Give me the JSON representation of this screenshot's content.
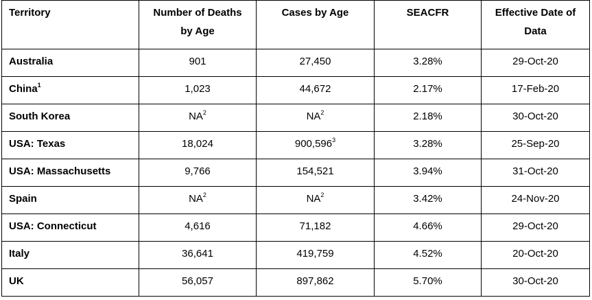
{
  "table": {
    "headers": [
      {
        "text": "Territory",
        "line2": ""
      },
      {
        "text": "Number of Deaths",
        "line2": "by Age"
      },
      {
        "text": "Cases by Age",
        "line2": ""
      },
      {
        "text": "SEACFR",
        "line2": ""
      },
      {
        "text": "Effective Date of",
        "line2": "Data"
      }
    ],
    "rows": [
      {
        "territory": "Australia",
        "territory_sup": "",
        "deaths": "901",
        "deaths_sup": "",
        "cases": "27,450",
        "cases_sup": "",
        "seacfr": "3.28%",
        "date": "29-Oct-20"
      },
      {
        "territory": "China",
        "territory_sup": "1",
        "deaths": "1,023",
        "deaths_sup": "",
        "cases": "44,672",
        "cases_sup": "",
        "seacfr": "2.17%",
        "date": "17-Feb-20"
      },
      {
        "territory": "South Korea",
        "territory_sup": "",
        "deaths": "NA",
        "deaths_sup": "2",
        "cases": "NA",
        "cases_sup": "2",
        "seacfr": "2.18%",
        "date": "30-Oct-20"
      },
      {
        "territory": "USA: Texas",
        "territory_sup": "",
        "deaths": "18,024",
        "deaths_sup": "",
        "cases": "900,596",
        "cases_sup": "3",
        "seacfr": "3.28%",
        "date": "25-Sep-20"
      },
      {
        "territory": "USA: Massachusetts",
        "territory_sup": "",
        "deaths": "9,766",
        "deaths_sup": "",
        "cases": "154,521",
        "cases_sup": "",
        "seacfr": "3.94%",
        "date": "31-Oct-20"
      },
      {
        "territory": "Spain",
        "territory_sup": "",
        "deaths": "NA",
        "deaths_sup": "2",
        "cases": "NA",
        "cases_sup": "2",
        "seacfr": "3.42%",
        "date": "24-Nov-20"
      },
      {
        "territory": "USA: Connecticut",
        "territory_sup": "",
        "deaths": "4,616",
        "deaths_sup": "",
        "cases": "71,182",
        "cases_sup": "",
        "seacfr": "4.66%",
        "date": "29-Oct-20"
      },
      {
        "territory": "Italy",
        "territory_sup": "",
        "deaths": "36,641",
        "deaths_sup": "",
        "cases": "419,759",
        "cases_sup": "",
        "seacfr": "4.52%",
        "date": "20-Oct-20"
      },
      {
        "territory": "UK",
        "territory_sup": "",
        "deaths": "56,057",
        "deaths_sup": "",
        "cases": "897,862",
        "cases_sup": "",
        "seacfr": "5.70%",
        "date": "30-Oct-20"
      }
    ]
  }
}
